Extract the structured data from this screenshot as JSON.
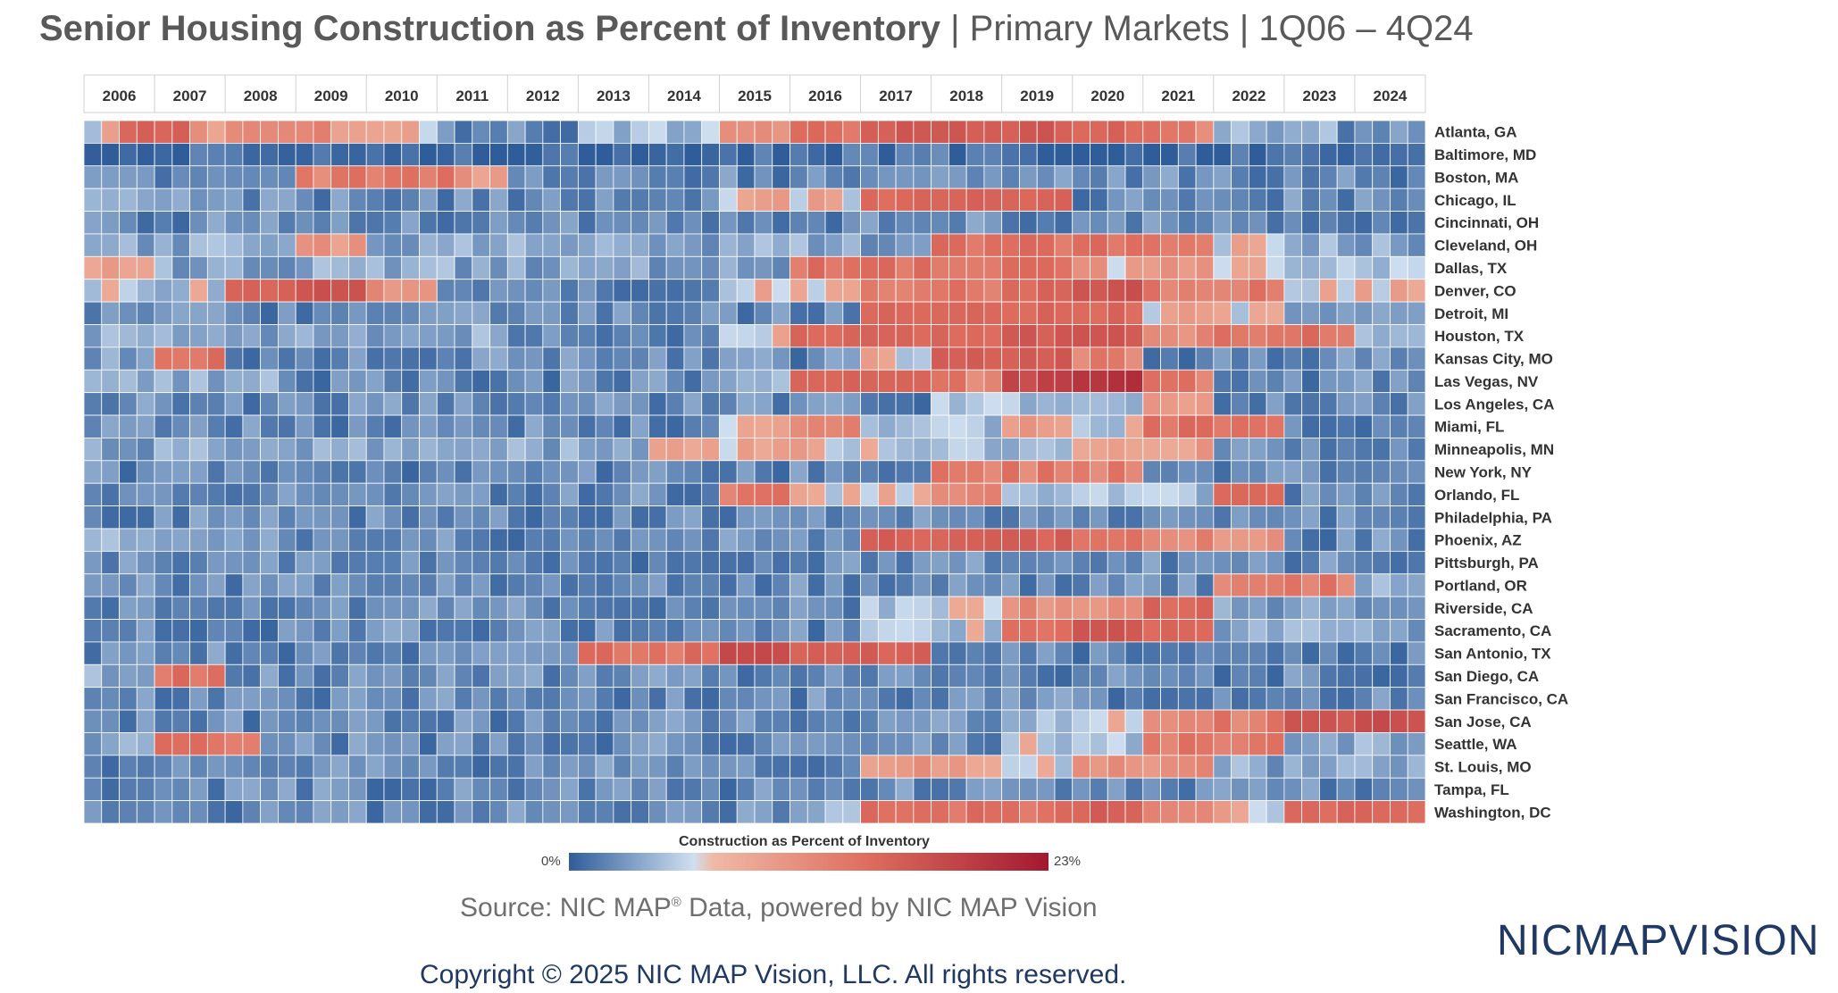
{
  "title": {
    "main": "Senior Housing Construction as Percent of Inventory",
    "suffix": " | Primary Markets | 1Q06 – 4Q24"
  },
  "legend": {
    "title": "Construction as Percent of Inventory",
    "min_label": "0%",
    "max_label": "23%",
    "color_low": "#2f5d9a",
    "color_mid": "#cfdff0",
    "color_high": "#a2192f"
  },
  "footer": {
    "source_prefix": "Source: NIC MAP",
    "source_suffix": " Data, powered by NIC MAP Vision",
    "copyright": "Copyright © 2025 NIC MAP Vision, LLC. All rights reserved.",
    "logo_text": "NICMAPVISION"
  },
  "chart_data": {
    "type": "heatmap",
    "title": "Senior Housing Construction as Percent of Inventory",
    "x_axis": {
      "years": [
        "2006",
        "2007",
        "2008",
        "2009",
        "2010",
        "2011",
        "2012",
        "2013",
        "2014",
        "2015",
        "2016",
        "2017",
        "2018",
        "2019",
        "2020",
        "2021",
        "2022",
        "2023",
        "2024"
      ],
      "quarters_per_year": 4
    },
    "markets": [
      "Atlanta, GA",
      "Baltimore, MD",
      "Boston, MA",
      "Chicago, IL",
      "Cincinnati, OH",
      "Cleveland, OH",
      "Dallas, TX",
      "Denver, CO",
      "Detroit, MI",
      "Houston, TX",
      "Kansas City, MO",
      "Las Vegas, NV",
      "Los Angeles, CA",
      "Miami, FL",
      "Minneapolis, MN",
      "New York, NY",
      "Orlando, FL",
      "Philadelphia, PA",
      "Phoenix, AZ",
      "Pittsburgh, PA",
      "Portland, OR",
      "Riverside, CA",
      "Sacramento, CA",
      "San Antonio, TX",
      "San Diego, CA",
      "San Francisco, CA",
      "San Jose, CA",
      "Seattle, WA",
      "St. Louis, MO",
      "Tampa, FL",
      "Washington, DC"
    ],
    "value_range": [
      0,
      23
    ],
    "unit": "%",
    "profiles": [
      [
        [
          0,
          1,
          6
        ],
        [
          2,
          5,
          12
        ],
        [
          6,
          8,
          7
        ],
        [
          8,
          13,
          9
        ],
        [
          14,
          19,
          6
        ],
        [
          20,
          27,
          3
        ],
        [
          28,
          35,
          5
        ],
        [
          36,
          39,
          7
        ],
        [
          40,
          43,
          10
        ],
        [
          44,
          55,
          13
        ],
        [
          56,
          59,
          11
        ],
        [
          60,
          63,
          9
        ],
        [
          64,
          70,
          4
        ],
        [
          71,
          75,
          3
        ]
      ],
      [
        [
          0,
          75,
          2
        ]
      ],
      [
        [
          0,
          11,
          3
        ],
        [
          12,
          20,
          9
        ],
        [
          21,
          23,
          7
        ],
        [
          24,
          75,
          3
        ]
      ],
      [
        [
          0,
          7,
          4
        ],
        [
          8,
          35,
          3
        ],
        [
          36,
          43,
          6
        ],
        [
          44,
          55,
          11
        ],
        [
          56,
          75,
          3
        ]
      ],
      [
        [
          0,
          75,
          3
        ]
      ],
      [
        [
          0,
          11,
          4
        ],
        [
          12,
          15,
          7
        ],
        [
          16,
          47,
          4
        ],
        [
          48,
          63,
          10
        ],
        [
          64,
          67,
          6
        ],
        [
          68,
          75,
          4
        ]
      ],
      [
        [
          0,
          3,
          6
        ],
        [
          4,
          39,
          4
        ],
        [
          40,
          55,
          10
        ],
        [
          56,
          67,
          7
        ],
        [
          68,
          75,
          5
        ]
      ],
      [
        [
          0,
          7,
          5
        ],
        [
          8,
          11,
          12
        ],
        [
          12,
          15,
          14
        ],
        [
          16,
          19,
          8
        ],
        [
          20,
          35,
          3
        ],
        [
          36,
          43,
          6
        ],
        [
          44,
          51,
          9
        ],
        [
          52,
          55,
          11
        ],
        [
          56,
          59,
          14
        ],
        [
          60,
          67,
          9
        ],
        [
          68,
          75,
          6
        ]
      ],
      [
        [
          0,
          43,
          3
        ],
        [
          44,
          59,
          11
        ],
        [
          60,
          67,
          6
        ],
        [
          68,
          75,
          3
        ]
      ],
      [
        [
          0,
          23,
          4
        ],
        [
          24,
          35,
          3
        ],
        [
          36,
          39,
          6
        ],
        [
          40,
          51,
          11
        ],
        [
          52,
          59,
          13
        ],
        [
          60,
          63,
          8
        ],
        [
          64,
          71,
          10
        ],
        [
          72,
          75,
          4
        ]
      ],
      [
        [
          0,
          3,
          4
        ],
        [
          4,
          7,
          10
        ],
        [
          8,
          43,
          3
        ],
        [
          44,
          47,
          6
        ],
        [
          48,
          55,
          13
        ],
        [
          56,
          59,
          9
        ],
        [
          60,
          75,
          3
        ]
      ],
      [
        [
          0,
          11,
          4
        ],
        [
          12,
          35,
          3
        ],
        [
          36,
          39,
          5
        ],
        [
          40,
          47,
          12
        ],
        [
          48,
          51,
          9
        ],
        [
          52,
          55,
          16
        ],
        [
          56,
          59,
          19
        ],
        [
          60,
          63,
          9
        ],
        [
          64,
          75,
          3
        ]
      ],
      [
        [
          0,
          47,
          3
        ],
        [
          48,
          59,
          5
        ],
        [
          60,
          63,
          7
        ],
        [
          64,
          75,
          3
        ]
      ],
      [
        [
          0,
          35,
          3
        ],
        [
          36,
          39,
          6
        ],
        [
          40,
          43,
          9
        ],
        [
          44,
          51,
          5
        ],
        [
          52,
          55,
          7
        ],
        [
          56,
          59,
          5
        ],
        [
          60,
          67,
          10
        ],
        [
          68,
          75,
          3
        ]
      ],
      [
        [
          0,
          31,
          4
        ],
        [
          32,
          43,
          6
        ],
        [
          44,
          55,
          5
        ],
        [
          56,
          63,
          7
        ],
        [
          64,
          75,
          3
        ]
      ],
      [
        [
          0,
          47,
          3
        ],
        [
          48,
          59,
          9
        ],
        [
          60,
          75,
          3
        ]
      ],
      [
        [
          0,
          35,
          3
        ],
        [
          36,
          39,
          9
        ],
        [
          40,
          47,
          6
        ],
        [
          48,
          51,
          9
        ],
        [
          52,
          63,
          5
        ],
        [
          64,
          67,
          11
        ],
        [
          68,
          75,
          3
        ]
      ],
      [
        [
          0,
          75,
          3
        ]
      ],
      [
        [
          0,
          11,
          4
        ],
        [
          12,
          43,
          3
        ],
        [
          44,
          55,
          12
        ],
        [
          56,
          59,
          9
        ],
        [
          60,
          67,
          8
        ],
        [
          68,
          75,
          3
        ]
      ],
      [
        [
          0,
          75,
          3
        ]
      ],
      [
        [
          0,
          63,
          3
        ],
        [
          64,
          71,
          9
        ],
        [
          72,
          75,
          4
        ]
      ],
      [
        [
          0,
          43,
          3
        ],
        [
          44,
          51,
          5
        ],
        [
          52,
          59,
          8
        ],
        [
          60,
          63,
          11
        ],
        [
          64,
          75,
          4
        ]
      ],
      [
        [
          0,
          43,
          3
        ],
        [
          44,
          51,
          5
        ],
        [
          52,
          55,
          9
        ],
        [
          56,
          59,
          14
        ],
        [
          60,
          63,
          11
        ],
        [
          64,
          75,
          4
        ]
      ],
      [
        [
          0,
          27,
          3
        ],
        [
          28,
          35,
          10
        ],
        [
          36,
          39,
          16
        ],
        [
          40,
          47,
          12
        ],
        [
          48,
          75,
          3
        ]
      ],
      [
        [
          0,
          3,
          4
        ],
        [
          4,
          7,
          10
        ],
        [
          8,
          75,
          3
        ]
      ],
      [
        [
          0,
          75,
          3
        ]
      ],
      [
        [
          0,
          51,
          3
        ],
        [
          52,
          59,
          5
        ],
        [
          60,
          67,
          9
        ],
        [
          68,
          71,
          13
        ],
        [
          72,
          75,
          15
        ]
      ],
      [
        [
          0,
          3,
          4
        ],
        [
          4,
          9,
          10
        ],
        [
          10,
          51,
          3
        ],
        [
          52,
          59,
          5
        ],
        [
          60,
          67,
          9
        ],
        [
          68,
          75,
          4
        ]
      ],
      [
        [
          0,
          43,
          3
        ],
        [
          44,
          51,
          7
        ],
        [
          52,
          55,
          5
        ],
        [
          56,
          63,
          8
        ],
        [
          64,
          75,
          4
        ]
      ],
      [
        [
          0,
          75,
          3
        ]
      ],
      [
        [
          0,
          39,
          3
        ],
        [
          40,
          43,
          5
        ],
        [
          44,
          55,
          10
        ],
        [
          56,
          59,
          12
        ],
        [
          60,
          63,
          8
        ],
        [
          64,
          67,
          6
        ],
        [
          68,
          75,
          11
        ]
      ]
    ]
  }
}
